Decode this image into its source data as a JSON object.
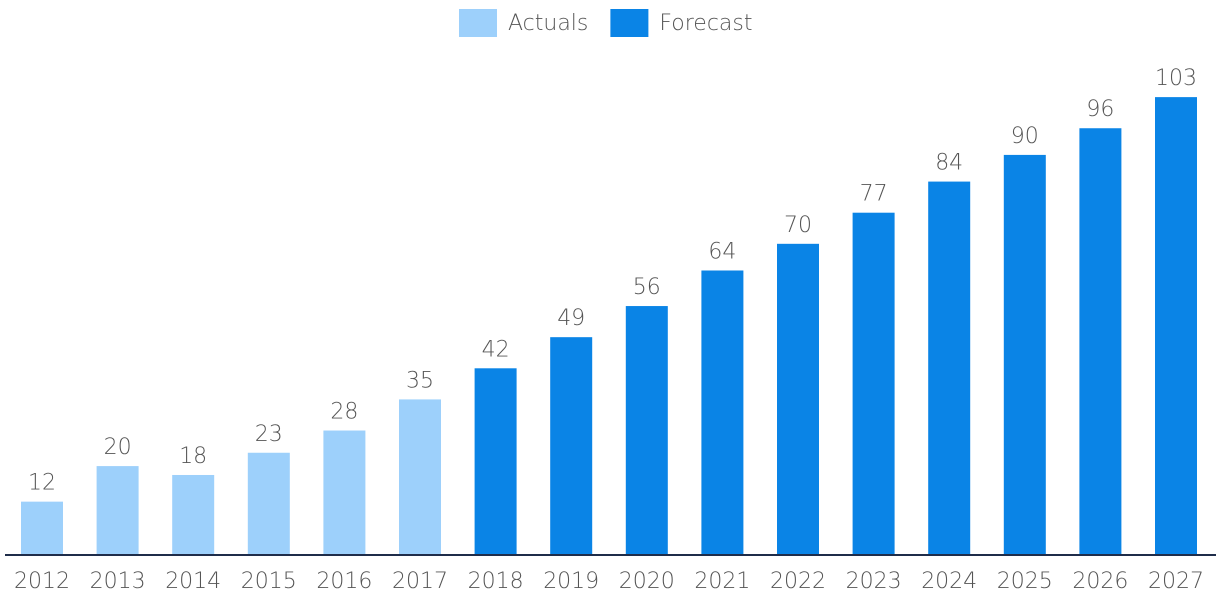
{
  "chart_data": {
    "type": "bar",
    "categories": [
      "2012",
      "2013",
      "2014",
      "2015",
      "2016",
      "2017",
      "2018",
      "2019",
      "2020",
      "2021",
      "2022",
      "2023",
      "2024",
      "2025",
      "2026",
      "2027"
    ],
    "series": [
      {
        "name": "Actuals",
        "color": "#9dd0fb",
        "values": [
          12,
          20,
          18,
          23,
          28,
          35,
          null,
          null,
          null,
          null,
          null,
          null,
          null,
          null,
          null,
          null
        ]
      },
      {
        "name": "Forecast",
        "color": "#0a84e6",
        "values": [
          null,
          null,
          null,
          null,
          null,
          null,
          42,
          49,
          56,
          64,
          70,
          77,
          84,
          90,
          96,
          103
        ]
      }
    ],
    "ylim": [
      0,
      110
    ],
    "legend": "top"
  }
}
